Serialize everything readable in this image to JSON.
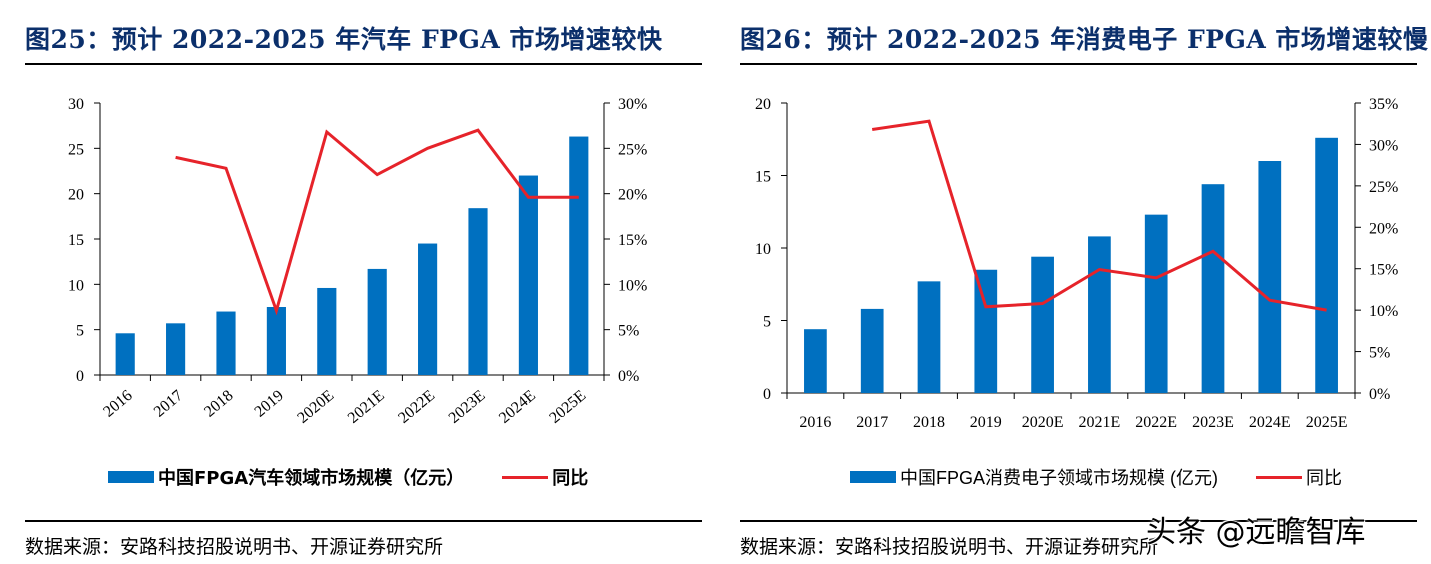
{
  "left": {
    "title": "图25：预计 2022-2025 年汽车 FPGA 市场增速较快",
    "source": "数据来源：安路科技招股说明书、开源证券研究所",
    "legend": {
      "bar": "中国FPGA汽车领域市场规模（亿元）",
      "line": "同比"
    },
    "colors": {
      "bar": "#0070c0",
      "line": "#e6232a"
    }
  },
  "right": {
    "title": "图26：预计 2022-2025 年消费电子 FPGA 市场增速较慢",
    "source": "数据来源：安路科技招股说明书、开源证券研究所",
    "legend": {
      "bar": "中国FPGA消费电子领域市场规模 (亿元)",
      "line": "同比"
    },
    "colors": {
      "bar": "#0070c0",
      "line": "#e6232a"
    }
  },
  "watermark": "头条 @远瞻智库",
  "chart_data": [
    {
      "type": "bar+line",
      "title": "图25：预计 2022-2025 年汽车 FPGA 市场增速较快",
      "categories": [
        "2016",
        "2017",
        "2018",
        "2019",
        "2020E",
        "2021E",
        "2022E",
        "2023E",
        "2024E",
        "2025E"
      ],
      "series": [
        {
          "name": "中国FPGA汽车领域市场规模（亿元）",
          "type": "bar",
          "axis": "left",
          "values": [
            4.6,
            5.7,
            7.0,
            7.5,
            9.6,
            11.7,
            14.5,
            18.4,
            22.0,
            26.3
          ]
        },
        {
          "name": "同比",
          "type": "line",
          "axis": "right",
          "values": [
            null,
            24.0,
            22.8,
            7.1,
            26.8,
            22.1,
            25.0,
            27.0,
            19.6,
            19.6
          ]
        }
      ],
      "y_left": {
        "min": 0,
        "max": 30,
        "ticks": [
          "0",
          "5",
          "10",
          "15",
          "20",
          "25",
          "30"
        ]
      },
      "y_right": {
        "min": 0,
        "max": 30,
        "ticks": [
          "0%",
          "5%",
          "10%",
          "15%",
          "20%",
          "25%",
          "30%"
        ]
      },
      "x_label_rotation": "angled"
    },
    {
      "type": "bar+line",
      "title": "图26：预计 2022-2025 年消费电子 FPGA 市场增速较慢",
      "categories": [
        "2016",
        "2017",
        "2018",
        "2019",
        "2020E",
        "2021E",
        "2022E",
        "2023E",
        "2024E",
        "2025E"
      ],
      "series": [
        {
          "name": "中国FPGA消费电子领域市场规模 (亿元)",
          "type": "bar",
          "axis": "left",
          "values": [
            4.4,
            5.8,
            7.7,
            8.5,
            9.4,
            10.8,
            12.3,
            14.4,
            16.0,
            17.6
          ]
        },
        {
          "name": "同比",
          "type": "line",
          "axis": "right",
          "values": [
            null,
            31.8,
            32.8,
            10.4,
            10.8,
            14.9,
            13.9,
            17.1,
            11.2,
            10.0
          ]
        }
      ],
      "y_left": {
        "min": 0,
        "max": 20,
        "ticks": [
          "0",
          "5",
          "10",
          "15",
          "20"
        ]
      },
      "y_right": {
        "min": 0,
        "max": 35,
        "ticks": [
          "0%",
          "5%",
          "10%",
          "15%",
          "20%",
          "25%",
          "30%",
          "35%"
        ]
      },
      "x_label_rotation": "horizontal"
    }
  ]
}
